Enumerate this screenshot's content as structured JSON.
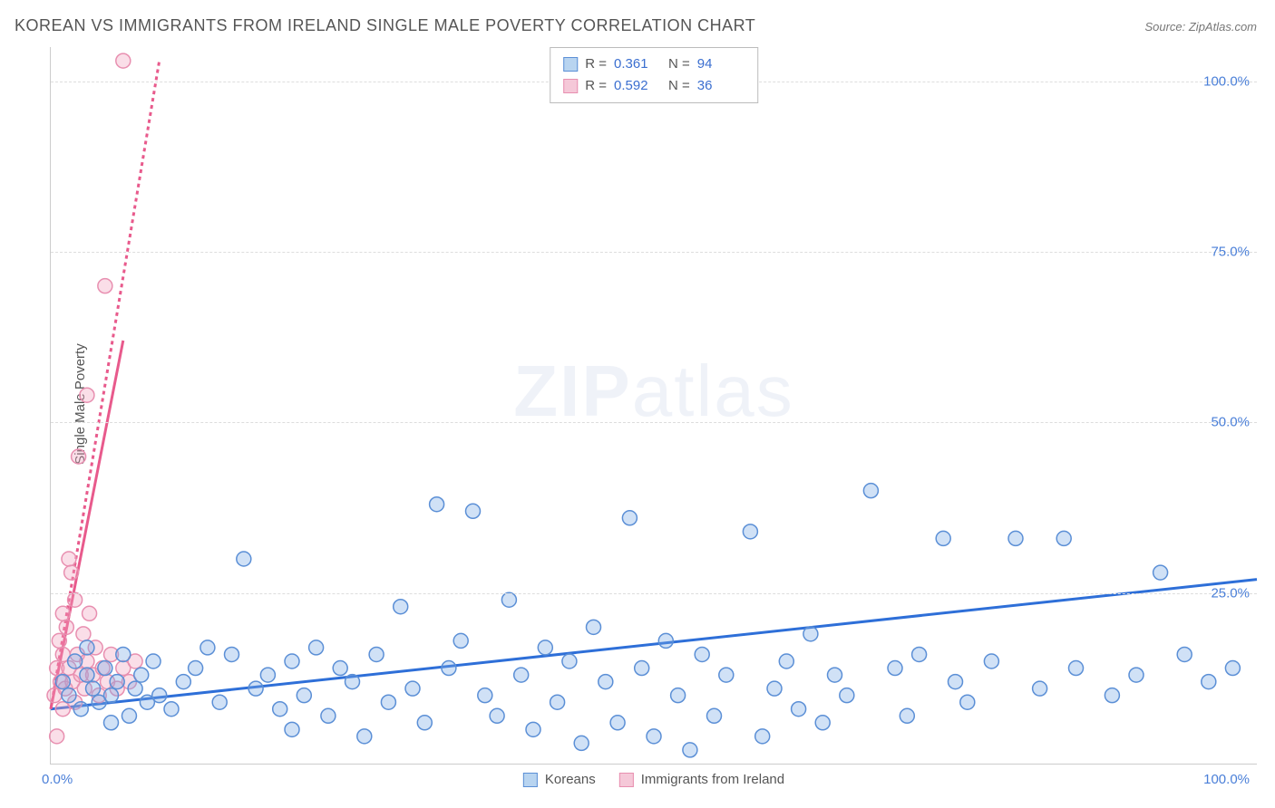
{
  "title": "KOREAN VS IMMIGRANTS FROM IRELAND SINGLE MALE POVERTY CORRELATION CHART",
  "source": "Source: ZipAtlas.com",
  "ylabel": "Single Male Poverty",
  "watermark": {
    "bold": "ZIP",
    "light": "atlas"
  },
  "chart": {
    "type": "scatter",
    "xlim": [
      0,
      100
    ],
    "ylim": [
      0,
      105
    ],
    "xtick_labels": {
      "min": "0.0%",
      "max": "100.0%"
    },
    "ytick_labels": [
      "25.0%",
      "50.0%",
      "75.0%",
      "100.0%"
    ],
    "ytick_values": [
      25,
      50,
      75,
      100
    ],
    "grid_color": "#dddddd",
    "axis_color": "#cccccc",
    "background_color": "#ffffff",
    "tick_color": "#4a7fd8",
    "marker_radius": 8,
    "marker_stroke_width": 1.5,
    "trend_line_width": 3,
    "series": [
      {
        "name": "Koreans",
        "fill": "rgba(120,170,230,0.35)",
        "stroke": "#5b8fd6",
        "swatch_fill": "#b8d4f0",
        "swatch_border": "#5b8fd6",
        "r": 0.361,
        "n": 94,
        "trend": {
          "x1": 0,
          "y1": 8,
          "x2": 100,
          "y2": 27,
          "color": "#2e6fd8",
          "dash": "none"
        },
        "points": [
          [
            1,
            12
          ],
          [
            1.5,
            10
          ],
          [
            2,
            15
          ],
          [
            2.5,
            8
          ],
          [
            3,
            13
          ],
          [
            3.5,
            11
          ],
          [
            4,
            9
          ],
          [
            4.5,
            14
          ],
          [
            5,
            10
          ],
          [
            5.5,
            12
          ],
          [
            6,
            16
          ],
          [
            6.5,
            7
          ],
          [
            7,
            11
          ],
          [
            7.5,
            13
          ],
          [
            8,
            9
          ],
          [
            8.5,
            15
          ],
          [
            9,
            10
          ],
          [
            10,
            8
          ],
          [
            11,
            12
          ],
          [
            12,
            14
          ],
          [
            13,
            17
          ],
          [
            14,
            9
          ],
          [
            15,
            16
          ],
          [
            16,
            30
          ],
          [
            17,
            11
          ],
          [
            18,
            13
          ],
          [
            19,
            8
          ],
          [
            20,
            5
          ],
          [
            20,
            15
          ],
          [
            21,
            10
          ],
          [
            22,
            17
          ],
          [
            23,
            7
          ],
          [
            24,
            14
          ],
          [
            25,
            12
          ],
          [
            26,
            4
          ],
          [
            27,
            16
          ],
          [
            28,
            9
          ],
          [
            29,
            23
          ],
          [
            30,
            11
          ],
          [
            31,
            6
          ],
          [
            32,
            38
          ],
          [
            33,
            14
          ],
          [
            34,
            18
          ],
          [
            35,
            37
          ],
          [
            36,
            10
          ],
          [
            37,
            7
          ],
          [
            38,
            24
          ],
          [
            39,
            13
          ],
          [
            40,
            5
          ],
          [
            41,
            17
          ],
          [
            42,
            9
          ],
          [
            43,
            15
          ],
          [
            44,
            3
          ],
          [
            45,
            20
          ],
          [
            46,
            12
          ],
          [
            47,
            6
          ],
          [
            48,
            36
          ],
          [
            49,
            14
          ],
          [
            50,
            4
          ],
          [
            51,
            18
          ],
          [
            52,
            10
          ],
          [
            53,
            2
          ],
          [
            54,
            16
          ],
          [
            55,
            7
          ],
          [
            56,
            13
          ],
          [
            58,
            34
          ],
          [
            59,
            4
          ],
          [
            60,
            11
          ],
          [
            61,
            15
          ],
          [
            62,
            8
          ],
          [
            63,
            19
          ],
          [
            64,
            6
          ],
          [
            65,
            13
          ],
          [
            66,
            10
          ],
          [
            68,
            40
          ],
          [
            70,
            14
          ],
          [
            71,
            7
          ],
          [
            72,
            16
          ],
          [
            74,
            33
          ],
          [
            75,
            12
          ],
          [
            76,
            9
          ],
          [
            78,
            15
          ],
          [
            80,
            33
          ],
          [
            82,
            11
          ],
          [
            84,
            33
          ],
          [
            85,
            14
          ],
          [
            88,
            10
          ],
          [
            90,
            13
          ],
          [
            92,
            28
          ],
          [
            94,
            16
          ],
          [
            96,
            12
          ],
          [
            98,
            14
          ],
          [
            3,
            17
          ],
          [
            5,
            6
          ]
        ]
      },
      {
        "name": "Immigrants from Ireland",
        "fill": "rgba(240,160,190,0.35)",
        "stroke": "#e88fb0",
        "swatch_fill": "#f5c8d8",
        "swatch_border": "#e88fb0",
        "r": 0.592,
        "n": 36,
        "trend": {
          "x1": 0,
          "y1": 8,
          "x2": 9,
          "y2": 103,
          "color": "#e85a8c",
          "dash": "4,4"
        },
        "trend_solid": {
          "x1": 0,
          "y1": 8,
          "x2": 6,
          "y2": 62,
          "color": "#e85a8c"
        },
        "points": [
          [
            0.3,
            10
          ],
          [
            0.5,
            14
          ],
          [
            0.7,
            18
          ],
          [
            0.8,
            12
          ],
          [
            1.0,
            22
          ],
          [
            1.0,
            16
          ],
          [
            1.2,
            11
          ],
          [
            1.3,
            20
          ],
          [
            1.5,
            30
          ],
          [
            1.5,
            14
          ],
          [
            1.7,
            28
          ],
          [
            1.8,
            12
          ],
          [
            2.0,
            24
          ],
          [
            2.2,
            16
          ],
          [
            2.3,
            45
          ],
          [
            2.5,
            13
          ],
          [
            2.7,
            19
          ],
          [
            2.8,
            11
          ],
          [
            3.0,
            54
          ],
          [
            3.0,
            15
          ],
          [
            3.2,
            22
          ],
          [
            3.5,
            13
          ],
          [
            3.7,
            17
          ],
          [
            4.0,
            10
          ],
          [
            4.3,
            14
          ],
          [
            4.5,
            70
          ],
          [
            4.7,
            12
          ],
          [
            5.0,
            16
          ],
          [
            5.5,
            11
          ],
          [
            6.0,
            14
          ],
          [
            6.0,
            103
          ],
          [
            6.5,
            12
          ],
          [
            7.0,
            15
          ],
          [
            0.5,
            4
          ],
          [
            1.0,
            8
          ],
          [
            2.0,
            9
          ]
        ]
      }
    ]
  },
  "legend_top": {
    "r_label": "R  =",
    "n_label": "N  ="
  },
  "legend_bottom": {
    "items": [
      "Koreans",
      "Immigrants from Ireland"
    ]
  }
}
